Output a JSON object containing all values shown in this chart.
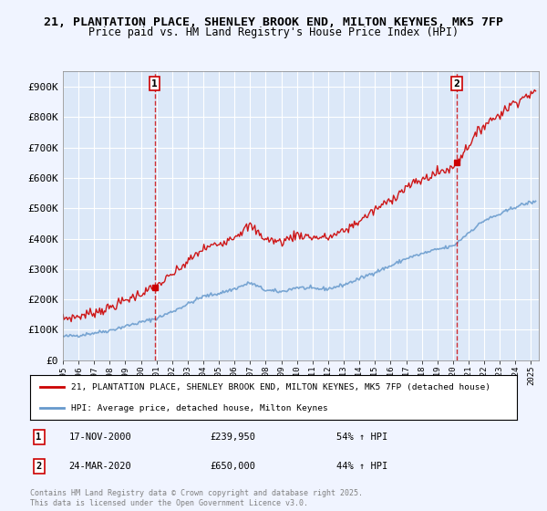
{
  "title_line1": "21, PLANTATION PLACE, SHENLEY BROOK END, MILTON KEYNES, MK5 7FP",
  "title_line2": "Price paid vs. HM Land Registry's House Price Index (HPI)",
  "background_color": "#f0f4ff",
  "plot_bg_color": "#dce8f8",
  "red_color": "#cc0000",
  "blue_color": "#6699cc",
  "ylim": [
    0,
    950000
  ],
  "yticks": [
    0,
    100000,
    200000,
    300000,
    400000,
    500000,
    600000,
    700000,
    800000,
    900000
  ],
  "ytick_labels": [
    "£0",
    "£100K",
    "£200K",
    "£300K",
    "£400K",
    "£500K",
    "£600K",
    "£700K",
    "£800K",
    "£900K"
  ],
  "sale1_date": 2000.88,
  "sale1_price": 239950,
  "sale2_date": 2020.23,
  "sale2_price": 650000,
  "legend_red": "21, PLANTATION PLACE, SHENLEY BROOK END, MILTON KEYNES, MK5 7FP (detached house)",
  "legend_blue": "HPI: Average price, detached house, Milton Keynes",
  "note1_num": "1",
  "note1_date": "17-NOV-2000",
  "note1_price": "£239,950",
  "note1_hpi": "54% ↑ HPI",
  "note2_num": "2",
  "note2_date": "24-MAR-2020",
  "note2_price": "£650,000",
  "note2_hpi": "44% ↑ HPI",
  "copyright": "Contains HM Land Registry data © Crown copyright and database right 2025.\nThis data is licensed under the Open Government Licence v3.0."
}
